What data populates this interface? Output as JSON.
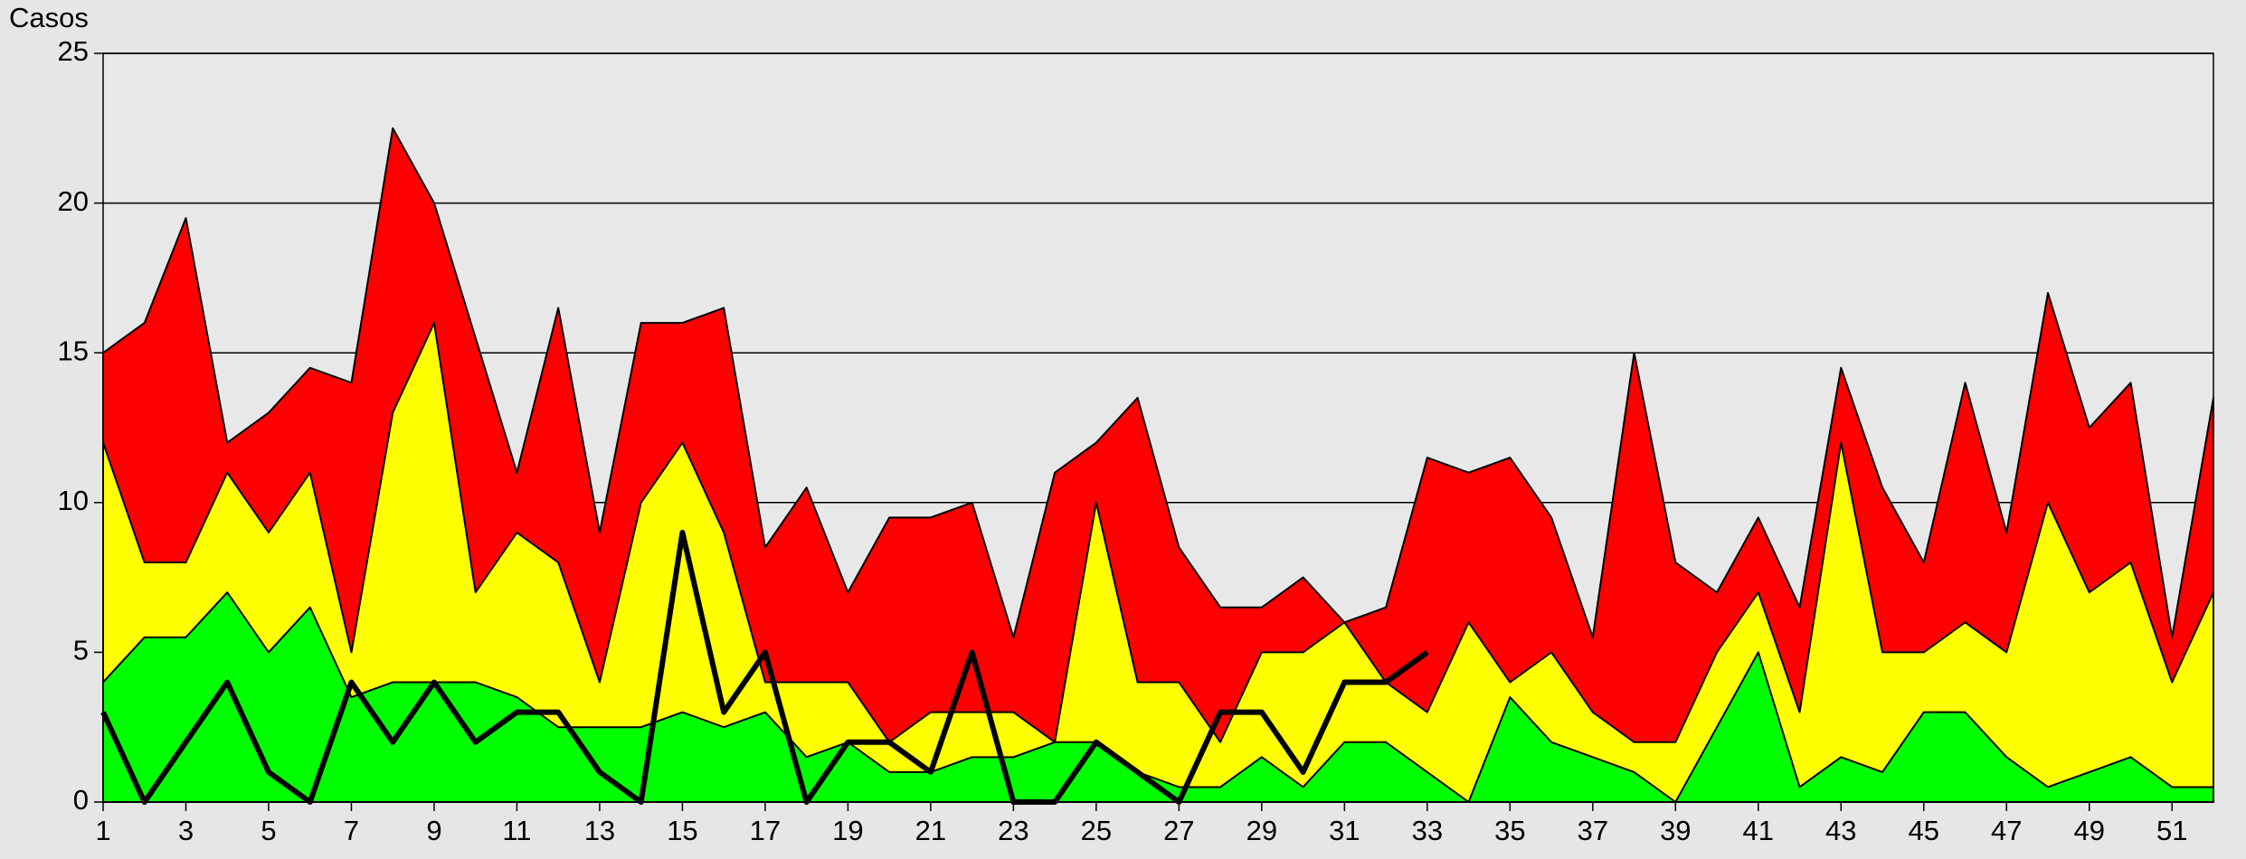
{
  "chart_data": {
    "type": "area",
    "y_label": "Casos",
    "x": [
      1,
      2,
      3,
      4,
      5,
      6,
      7,
      8,
      9,
      10,
      11,
      12,
      13,
      14,
      15,
      16,
      17,
      18,
      19,
      20,
      21,
      22,
      23,
      24,
      25,
      26,
      27,
      28,
      29,
      30,
      31,
      32,
      33,
      34,
      35,
      36,
      37,
      38,
      39,
      40,
      41,
      42,
      43,
      44,
      45,
      46,
      47,
      48,
      49,
      50,
      51,
      52
    ],
    "xlim": [
      1,
      52
    ],
    "xticks": [
      1,
      3,
      5,
      7,
      9,
      11,
      13,
      15,
      17,
      19,
      21,
      23,
      25,
      27,
      29,
      31,
      33,
      35,
      37,
      39,
      41,
      43,
      45,
      47,
      49,
      51
    ],
    "ylim": [
      0,
      25
    ],
    "yticks": [
      0,
      5,
      10,
      15,
      20,
      25
    ],
    "grid": true,
    "series": [
      {
        "kind": "area",
        "color": "#ff0000",
        "values": [
          15,
          16,
          19.5,
          12,
          13,
          14.5,
          14,
          22.5,
          20,
          15.5,
          11,
          16.5,
          9,
          16,
          16,
          16.5,
          8.5,
          10.5,
          7,
          9.5,
          9.5,
          10,
          5.5,
          11,
          12,
          13.5,
          8.5,
          6.5,
          6.5,
          7.5,
          6,
          6.5,
          11.5,
          11,
          11.5,
          9.5,
          5.5,
          15,
          8,
          7,
          9.5,
          6.5,
          14.5,
          10.5,
          8,
          14,
          9,
          17,
          12.5,
          14,
          5.5,
          13.5
        ]
      },
      {
        "kind": "area",
        "color": "#ffff00",
        "values": [
          12,
          8,
          8,
          11,
          9,
          11,
          5,
          13,
          16,
          7,
          9,
          8,
          4,
          10,
          12,
          9,
          4,
          4,
          4,
          2,
          3,
          3,
          3,
          2,
          10,
          4,
          4,
          2,
          5,
          5,
          6,
          4,
          3,
          6,
          4,
          5,
          3,
          2,
          2,
          5,
          7,
          3,
          12,
          5,
          5,
          6,
          5,
          10,
          7,
          8,
          4,
          7
        ]
      },
      {
        "kind": "area",
        "color": "#00ff00",
        "values": [
          4,
          5.5,
          5.5,
          7,
          5,
          6.5,
          3.5,
          4,
          4,
          4,
          3.5,
          2.5,
          2.5,
          2.5,
          3,
          2.5,
          3,
          1.5,
          2,
          1,
          1,
          1.5,
          1.5,
          2,
          2,
          1,
          0.5,
          0.5,
          1.5,
          0.5,
          2,
          2,
          1,
          0,
          3.5,
          2,
          1.5,
          1,
          0,
          2.5,
          5,
          0.5,
          1.5,
          1,
          3,
          3,
          1.5,
          0.5,
          1,
          1.5,
          0.5,
          0.5
        ]
      },
      {
        "kind": "line",
        "color": "#000000",
        "values": [
          3,
          0,
          2,
          4,
          1,
          0,
          4,
          2,
          4,
          2,
          3,
          3,
          1,
          0,
          9,
          3,
          5,
          0,
          2,
          2,
          1,
          5,
          0,
          0,
          2,
          1,
          0,
          3,
          3,
          1,
          4,
          4,
          5,
          null,
          null,
          null,
          null,
          null,
          null,
          null,
          null,
          null,
          null,
          null,
          null,
          null,
          null,
          null,
          null,
          null,
          null,
          null
        ]
      }
    ]
  }
}
